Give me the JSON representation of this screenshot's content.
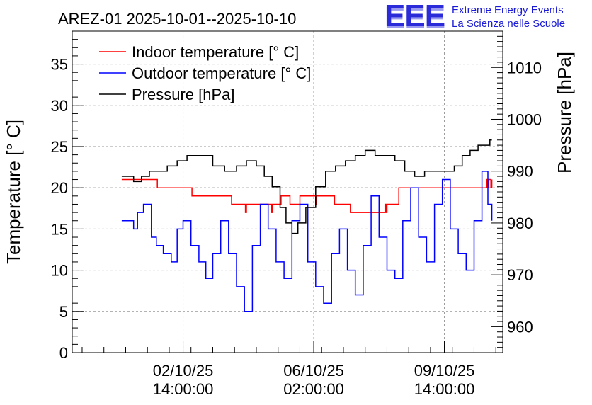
{
  "chart_data": {
    "type": "line",
    "title": "AREZ-01 2025-10-01--2025-10-10",
    "ylabel_left": "Temperature [° C]",
    "ylabel_right": "Pressure [hPa]",
    "ylim_left": [
      0,
      39
    ],
    "ylim_right": [
      955,
      1017
    ],
    "yticks_left": [
      "0",
      "5",
      "10",
      "15",
      "20",
      "25",
      "30",
      "35"
    ],
    "yticks_right": [
      "960",
      "970",
      "980",
      "990",
      "1000",
      "1010"
    ],
    "xlim_hours": [
      -50,
      385
    ],
    "xticks": [
      {
        "hour": 62,
        "line1": "02/10/25",
        "line2": "14:00:00"
      },
      {
        "hour": 194,
        "line1": "06/10/25",
        "line2": "02:00:00"
      },
      {
        "hour": 326,
        "line1": "09/10/25",
        "line2": "14:00:00"
      }
    ],
    "legend": [
      {
        "label": "Indoor temperature [° C]",
        "color": "#ff0000"
      },
      {
        "label": "Outdoor temperature [° C]",
        "color": "#0000ff"
      },
      {
        "label": "Pressure [hPa]",
        "color": "#000000"
      }
    ],
    "series": [
      {
        "name": "Indoor temperature [° C]",
        "axis": "left",
        "color": "#ff0000",
        "x": [
          0,
          35,
          36,
          70,
          71,
          110,
          111,
          124,
          125,
          126,
          127,
          140,
          150,
          151,
          152,
          153,
          160,
          161,
          170,
          180,
          195,
          196,
          197,
          198,
          215,
          216,
          217,
          230,
          231,
          250,
          266,
          267,
          268,
          269,
          275,
          280,
          305,
          340,
          360,
          369,
          370,
          371,
          372,
          373,
          374
        ],
        "values": [
          21,
          21,
          20,
          20,
          19,
          19,
          18,
          18,
          17,
          18,
          18,
          18,
          18,
          17,
          18,
          18,
          18,
          19,
          18,
          19,
          19,
          18,
          19,
          19,
          18,
          18,
          18,
          18,
          17,
          17,
          18,
          17,
          18,
          18,
          18,
          20,
          20,
          20,
          20,
          21,
          20,
          21,
          21,
          20,
          21
        ]
      },
      {
        "name": "Outdoor temperature [° C]",
        "axis": "left",
        "color": "#0000ff",
        "x": [
          0,
          8,
          12,
          16,
          22,
          30,
          35,
          42,
          50,
          56,
          62,
          70,
          78,
          85,
          92,
          100,
          108,
          116,
          124,
          132,
          140,
          148,
          156,
          164,
          172,
          180,
          188,
          196,
          204,
          212,
          220,
          228,
          236,
          244,
          252,
          260,
          268,
          276,
          284,
          292,
          300,
          308,
          316,
          324,
          332,
          340,
          348,
          356,
          364,
          370,
          374
        ],
        "values": [
          16,
          16,
          15,
          17,
          18,
          14,
          13,
          12,
          11,
          15,
          16,
          13,
          11,
          9,
          12,
          16,
          12,
          8,
          5,
          13,
          18,
          15,
          11,
          9,
          16,
          18,
          11,
          8,
          6,
          12,
          15,
          10,
          7,
          13,
          19,
          14,
          10,
          9,
          16,
          20,
          14,
          11,
          18,
          21,
          15,
          12,
          10,
          16,
          22,
          18,
          16
        ]
      },
      {
        "name": "Pressure [hPa]",
        "axis": "right",
        "color": "#000000",
        "x": [
          0,
          12,
          20,
          28,
          36,
          46,
          56,
          66,
          80,
          92,
          104,
          116,
          126,
          136,
          144,
          152,
          160,
          166,
          172,
          178,
          186,
          196,
          206,
          216,
          226,
          236,
          246,
          256,
          266,
          276,
          286,
          296,
          306,
          316,
          326,
          336,
          344,
          352,
          360,
          366,
          372,
          374
        ],
        "values": [
          989,
          988,
          989,
          990,
          990,
          991,
          992,
          993,
          993,
          991,
          990,
          991,
          992,
          991,
          989,
          987,
          983,
          980,
          978,
          980,
          983,
          987,
          990,
          991,
          992,
          993,
          994,
          993,
          993,
          992,
          990,
          989,
          990,
          990,
          990,
          991,
          993,
          994,
          995,
          995,
          996,
          996
        ]
      }
    ]
  },
  "logo": {
    "letters": "EEE",
    "line1": "Extreme Energy Events",
    "line2": "La Scienza nelle Scuole"
  }
}
